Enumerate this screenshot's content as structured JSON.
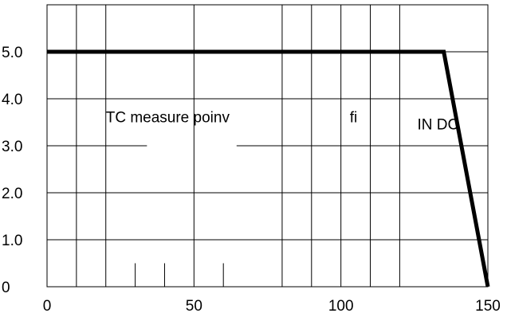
{
  "chart_data": {
    "type": "line",
    "title": "",
    "xlabel": "",
    "ylabel": "",
    "xlim": [
      0,
      150
    ],
    "ylim": [
      0,
      6
    ],
    "x_ticks": [
      {
        "value": 0,
        "label": "0"
      },
      {
        "value": 50,
        "label": "50"
      },
      {
        "value": 100,
        "label": "100"
      },
      {
        "value": 150,
        "label": "150"
      }
    ],
    "y_ticks": [
      {
        "value": 0,
        "label": "0"
      },
      {
        "value": 1,
        "label": "1.0"
      },
      {
        "value": 2,
        "label": "2.0"
      },
      {
        "value": 3,
        "label": "3.0"
      },
      {
        "value": 4,
        "label": "4.0"
      },
      {
        "value": 5,
        "label": "5.0"
      }
    ],
    "x_gridlines": [
      10,
      20,
      50,
      80,
      90,
      100,
      110,
      120
    ],
    "y_gridlines": [
      1,
      2,
      4,
      5
    ],
    "series": [
      {
        "x": [
          0,
          135,
          150
        ],
        "y": [
          5.0,
          5.0,
          0
        ],
        "color": "#000000"
      }
    ],
    "annotations": [
      {
        "text": "TC measure poinv",
        "x": 20,
        "y": 3.5
      },
      {
        "text": "fi",
        "x": 103,
        "y": 3.5
      },
      {
        "text": "IN DC",
        "x": 126,
        "y": 3.35
      }
    ]
  }
}
